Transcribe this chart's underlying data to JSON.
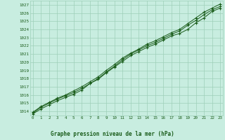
{
  "xlabel": "Graphe pression niveau de la mer (hPa)",
  "background_color": "#c8ede0",
  "plot_bg_color": "#c8ede0",
  "grid_color": "#9ecfb8",
  "line_color": "#1a5c1a",
  "marker_color": "#1a5c1a",
  "xlim": [
    -0.3,
    23.3
  ],
  "ylim": [
    1013.5,
    1027.5
  ],
  "yticks": [
    1014,
    1015,
    1016,
    1017,
    1018,
    1019,
    1020,
    1021,
    1022,
    1023,
    1024,
    1025,
    1026,
    1027
  ],
  "xticks": [
    0,
    1,
    2,
    3,
    4,
    5,
    6,
    7,
    8,
    9,
    10,
    11,
    12,
    13,
    14,
    15,
    16,
    17,
    18,
    19,
    20,
    21,
    22,
    23
  ],
  "series": [
    [
      1013.7,
      1014.3,
      1014.8,
      1015.3,
      1015.7,
      1016.1,
      1016.6,
      1017.4,
      1017.9,
      1018.7,
      1019.4,
      1020.1,
      1020.8,
      1021.3,
      1021.8,
      1022.2,
      1022.7,
      1023.2,
      1023.5,
      1024.0,
      1024.8,
      1025.4,
      1026.2,
      1026.6
    ],
    [
      1013.8,
      1014.5,
      1015.0,
      1015.5,
      1015.9,
      1016.3,
      1016.8,
      1017.4,
      1018.0,
      1018.8,
      1019.5,
      1020.3,
      1021.0,
      1021.5,
      1022.0,
      1022.4,
      1022.9,
      1023.4,
      1023.8,
      1024.5,
      1025.1,
      1025.8,
      1026.4,
      1026.8
    ],
    [
      1013.9,
      1014.6,
      1015.1,
      1015.6,
      1016.0,
      1016.5,
      1017.0,
      1017.6,
      1018.2,
      1019.0,
      1019.7,
      1020.5,
      1021.1,
      1021.6,
      1022.2,
      1022.6,
      1023.1,
      1023.6,
      1024.0,
      1024.7,
      1025.4,
      1026.1,
      1026.6,
      1027.1
    ]
  ]
}
